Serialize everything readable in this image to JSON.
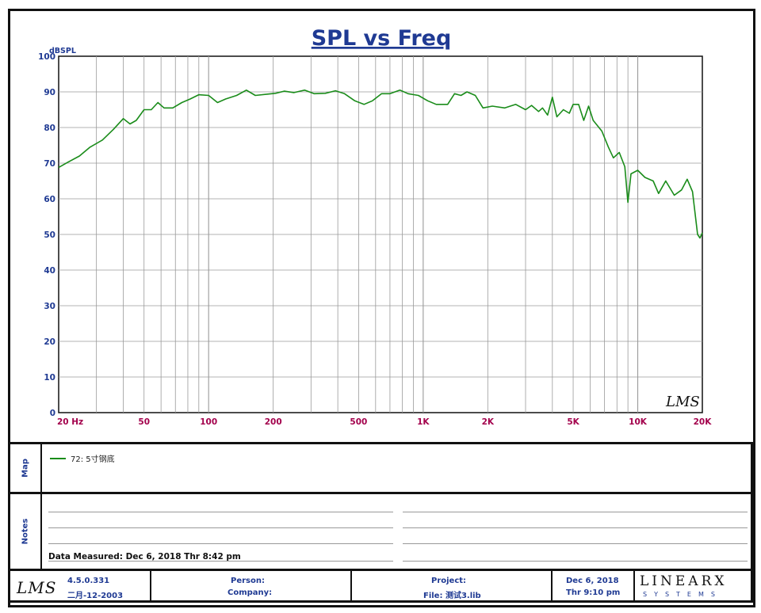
{
  "chart_data": {
    "type": "line",
    "title": "SPL vs Freq",
    "ylabel": "dBSPL",
    "xscale": "log",
    "xlim": [
      20,
      20000
    ],
    "ylim": [
      0,
      100
    ],
    "yticks": [
      0,
      10,
      20,
      30,
      40,
      50,
      60,
      70,
      80,
      90,
      100
    ],
    "xticks": [
      {
        "value": 20,
        "label": "20  Hz"
      },
      {
        "value": 50,
        "label": "50"
      },
      {
        "value": 100,
        "label": "100"
      },
      {
        "value": 200,
        "label": "200"
      },
      {
        "value": 500,
        "label": "500"
      },
      {
        "value": 1000,
        "label": "1K"
      },
      {
        "value": 2000,
        "label": "2K"
      },
      {
        "value": 5000,
        "label": "5K"
      },
      {
        "value": 10000,
        "label": "10K"
      },
      {
        "value": 20000,
        "label": "20K"
      }
    ],
    "grid": true,
    "watermark": "LMS",
    "series": [
      {
        "name": "72: 5寸钢底",
        "color": "#1a8c1a",
        "points": [
          [
            20,
            68.8
          ],
          [
            22,
            70.2
          ],
          [
            25,
            72
          ],
          [
            28,
            74.5
          ],
          [
            32,
            76.5
          ],
          [
            36,
            79.5
          ],
          [
            40,
            82.5
          ],
          [
            43,
            81
          ],
          [
            46,
            82
          ],
          [
            50,
            85
          ],
          [
            54,
            85
          ],
          [
            58,
            87
          ],
          [
            62,
            85.5
          ],
          [
            68,
            85.5
          ],
          [
            75,
            87
          ],
          [
            82,
            88
          ],
          [
            90,
            89.2
          ],
          [
            100,
            89
          ],
          [
            110,
            87
          ],
          [
            120,
            88
          ],
          [
            135,
            89
          ],
          [
            150,
            90.5
          ],
          [
            165,
            89
          ],
          [
            185,
            89.3
          ],
          [
            205,
            89.6
          ],
          [
            225,
            90.2
          ],
          [
            250,
            89.8
          ],
          [
            280,
            90.5
          ],
          [
            310,
            89.5
          ],
          [
            350,
            89.6
          ],
          [
            390,
            90.3
          ],
          [
            430,
            89.5
          ],
          [
            480,
            87.5
          ],
          [
            530,
            86.5
          ],
          [
            580,
            87.5
          ],
          [
            640,
            89.5
          ],
          [
            700,
            89.5
          ],
          [
            780,
            90.5
          ],
          [
            850,
            89.5
          ],
          [
            950,
            89
          ],
          [
            1050,
            87.5
          ],
          [
            1150,
            86.5
          ],
          [
            1300,
            86.5
          ],
          [
            1400,
            89.5
          ],
          [
            1500,
            89
          ],
          [
            1600,
            90
          ],
          [
            1750,
            89
          ],
          [
            1900,
            85.5
          ],
          [
            2100,
            86
          ],
          [
            2400,
            85.5
          ],
          [
            2700,
            86.5
          ],
          [
            3000,
            85
          ],
          [
            3200,
            86.2
          ],
          [
            3450,
            84.5
          ],
          [
            3600,
            85.5
          ],
          [
            3800,
            83.5
          ],
          [
            4000,
            88.5
          ],
          [
            4200,
            83
          ],
          [
            4500,
            85
          ],
          [
            4800,
            84
          ],
          [
            5000,
            86.5
          ],
          [
            5300,
            86.5
          ],
          [
            5600,
            82
          ],
          [
            5900,
            86
          ],
          [
            6200,
            82
          ],
          [
            6800,
            79
          ],
          [
            7300,
            74.5
          ],
          [
            7700,
            71.5
          ],
          [
            8200,
            73
          ],
          [
            8700,
            69
          ],
          [
            9000,
            59
          ],
          [
            9300,
            67
          ],
          [
            10000,
            68
          ],
          [
            10800,
            66
          ],
          [
            11800,
            65
          ],
          [
            12500,
            61.5
          ],
          [
            13500,
            65
          ],
          [
            14800,
            61
          ],
          [
            16000,
            62.5
          ],
          [
            17000,
            65.5
          ],
          [
            18000,
            62
          ],
          [
            19000,
            50
          ],
          [
            19500,
            49
          ],
          [
            20000,
            50.5
          ]
        ]
      }
    ]
  },
  "map": {
    "side_label": "Map",
    "legend_entry": "72: 5寸钢底"
  },
  "notes": {
    "side_label": "Notes",
    "data_measured": "Data Measured: Dec  6, 2018  Thr  8:42 pm"
  },
  "footer": {
    "lms_logo": "LMS",
    "version": "4.5.0.331",
    "version_date": "二月-12-2003",
    "person_label": "Person:",
    "company_label": "Company:",
    "project_label": "Project:",
    "file_label": "File: 测试3.lib",
    "date": "Dec  6, 2018",
    "time": "Thr  9:10 pm",
    "brand": "LINEARX",
    "brand_sub": "SYSTEMS"
  }
}
